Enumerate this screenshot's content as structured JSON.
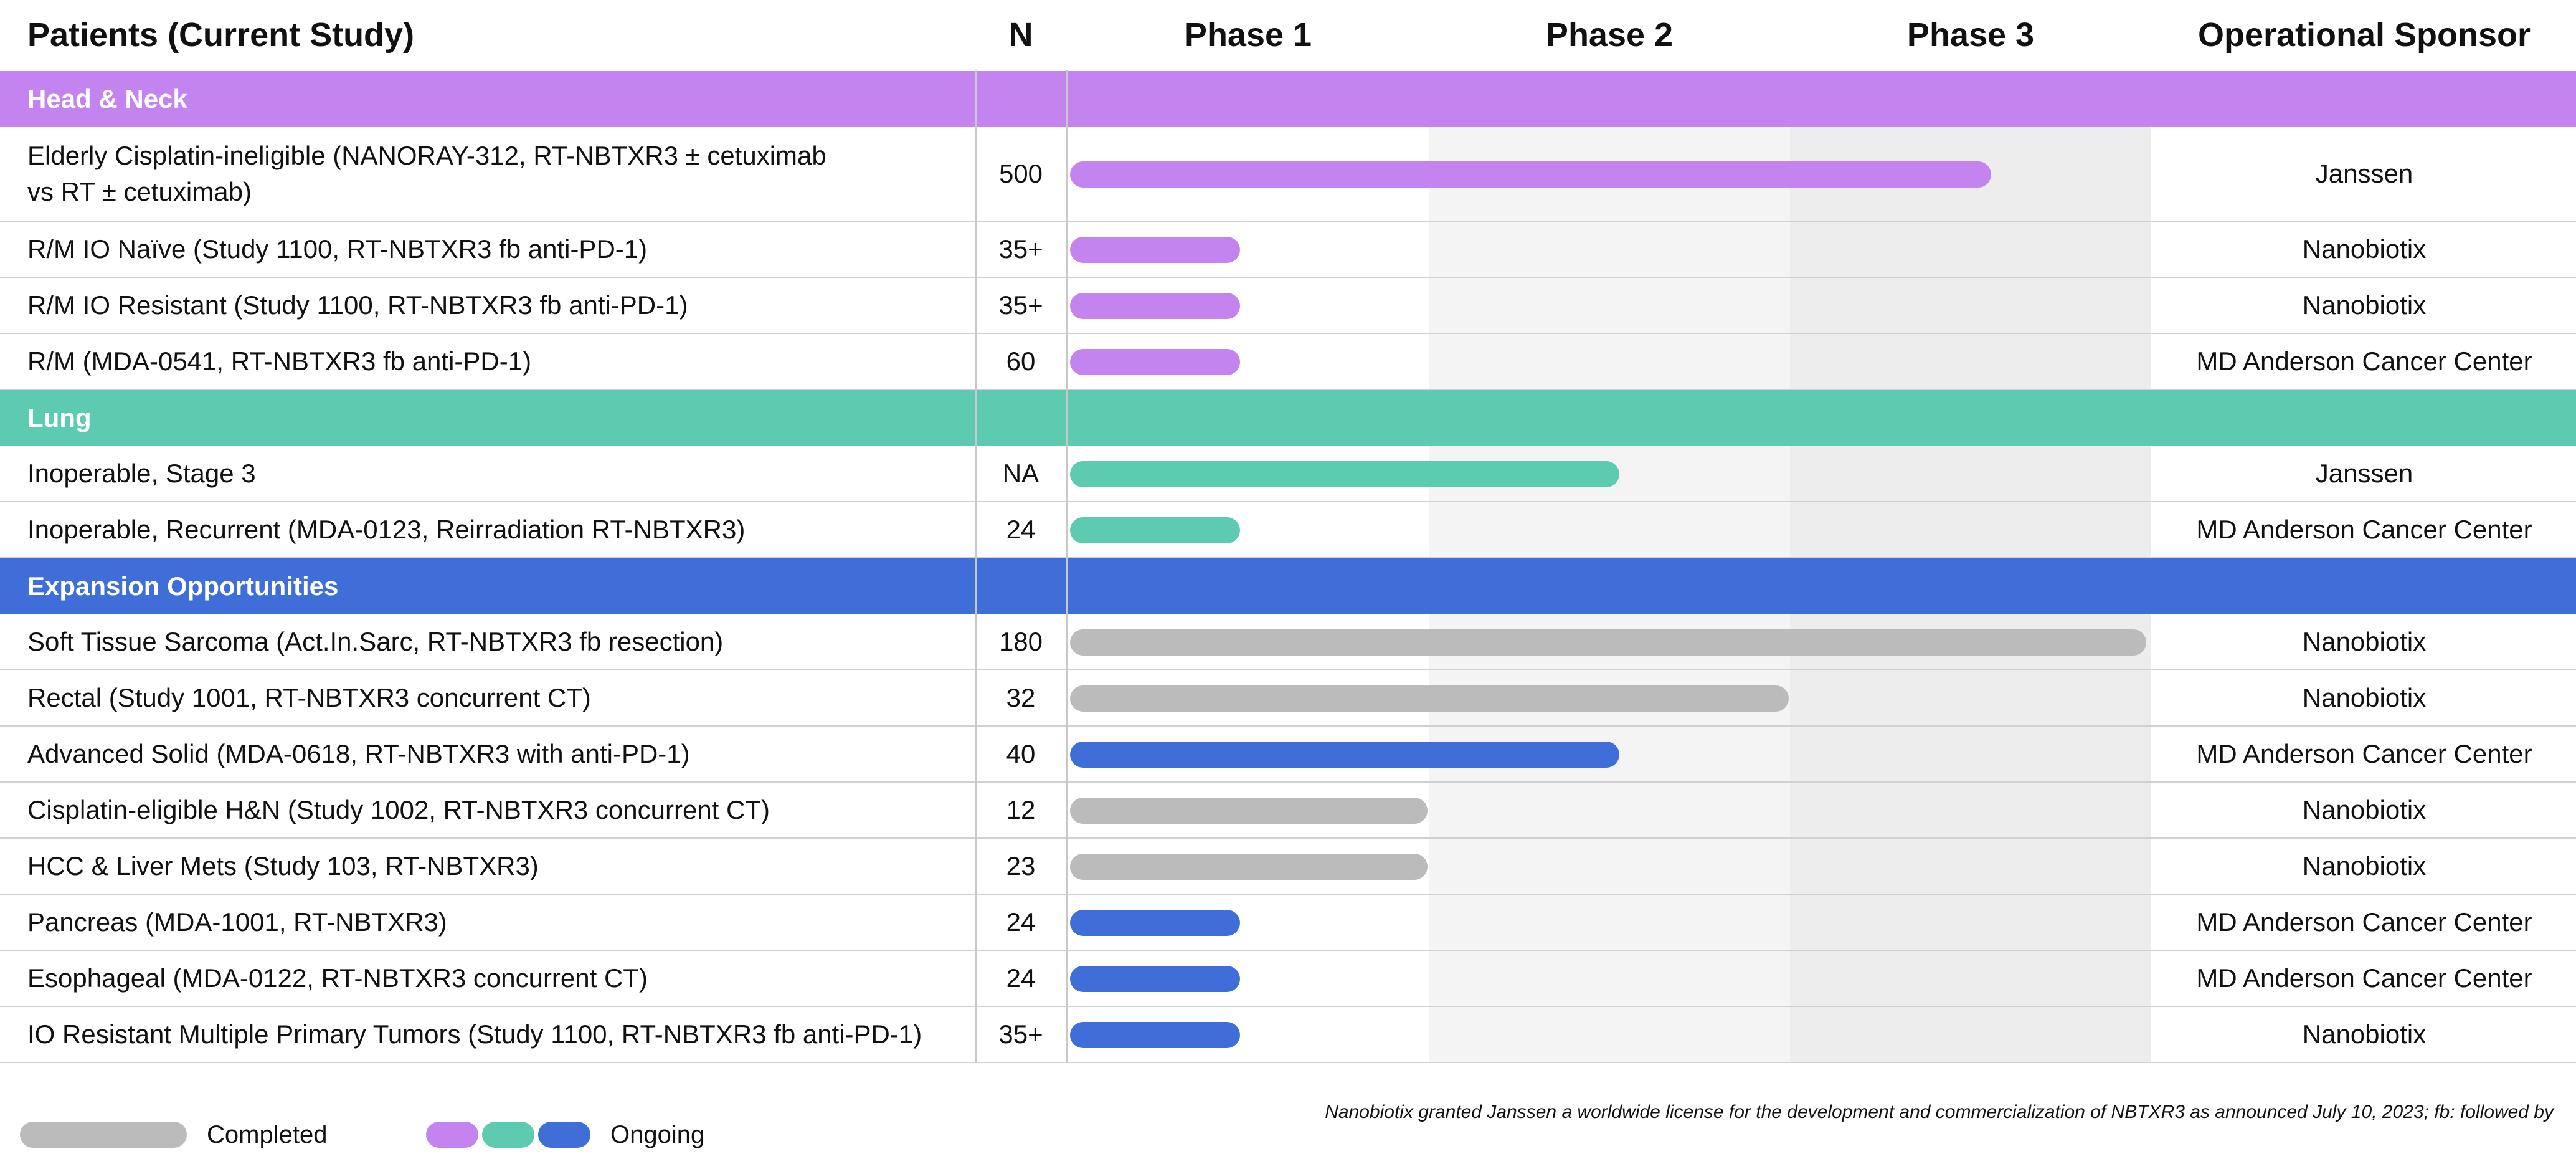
{
  "header": {
    "patients": "Patients (Current Study)",
    "n": "N",
    "phase1": "Phase 1",
    "phase2": "Phase 2",
    "phase3": "Phase 3",
    "sponsor": "Operational Sponsor"
  },
  "colors": {
    "head_neck": "#c484f0",
    "lung": "#5ccbb0",
    "expansion": "#3f6ed8",
    "completed": "#bbbbbb",
    "phase_shade_1": "#f0f0f0",
    "phase_shade_2": "#f7f7f7"
  },
  "sections": [
    {
      "label": "Head & Neck",
      "color_key": "head_neck",
      "rows": [
        {
          "name": "Elderly Cisplatin-ineligible (NANORAY-312, RT-NBTXR3 ± cetuximab\nvs RT ± cetuximab)",
          "n": "500",
          "sponsor": "Janssen",
          "progress_phases": 2.55,
          "status": "ongoing"
        },
        {
          "name": "R/M IO Naïve (Study 1100, RT-NBTXR3 fb anti-PD-1)",
          "n": "35+",
          "sponsor": "Nanobiotix",
          "progress_phases": 0.47,
          "status": "ongoing"
        },
        {
          "name": "R/M IO Resistant (Study 1100, RT-NBTXR3 fb anti-PD-1)",
          "n": "35+",
          "sponsor": "Nanobiotix",
          "progress_phases": 0.47,
          "status": "ongoing"
        },
        {
          "name": "R/M (MDA-0541, RT-NBTXR3 fb anti-PD-1)",
          "n": "60",
          "sponsor": "MD Anderson Cancer Center",
          "progress_phases": 0.47,
          "status": "ongoing"
        }
      ]
    },
    {
      "label": "Lung",
      "color_key": "lung",
      "rows": [
        {
          "name": "Inoperable, Stage 3",
          "n": "NA",
          "sponsor": "Janssen",
          "progress_phases": 1.52,
          "status": "ongoing"
        },
        {
          "name": "Inoperable, Recurrent (MDA-0123, Reirradiation RT-NBTXR3)",
          "n": "24",
          "sponsor": "MD Anderson Cancer Center",
          "progress_phases": 0.47,
          "status": "ongoing"
        }
      ]
    },
    {
      "label": "Expansion Opportunities",
      "color_key": "expansion",
      "rows": [
        {
          "name": "Soft Tissue Sarcoma (Act.In.Sarc, RT-NBTXR3 fb resection)",
          "n": "180",
          "sponsor": "Nanobiotix",
          "progress_phases": 2.98,
          "status": "completed"
        },
        {
          "name": "Rectal (Study 1001, RT-NBTXR3 concurrent CT)",
          "n": "32",
          "sponsor": "Nanobiotix",
          "progress_phases": 1.99,
          "status": "completed"
        },
        {
          "name": "Advanced Solid (MDA-0618, RT-NBTXR3 with anti-PD-1)",
          "n": "40",
          "sponsor": "MD Anderson Cancer Center",
          "progress_phases": 1.52,
          "status": "ongoing"
        },
        {
          "name": "Cisplatin-eligible H&N (Study 1002, RT-NBTXR3 concurrent CT)",
          "n": "12",
          "sponsor": "Nanobiotix",
          "progress_phases": 0.99,
          "status": "completed"
        },
        {
          "name": "HCC & Liver Mets (Study 103, RT-NBTXR3)",
          "n": "23",
          "sponsor": "Nanobiotix",
          "progress_phases": 0.99,
          "status": "completed"
        },
        {
          "name": "Pancreas (MDA-1001, RT-NBTXR3)",
          "n": "24",
          "sponsor": "MD Anderson Cancer Center",
          "progress_phases": 0.47,
          "status": "ongoing"
        },
        {
          "name": "Esophageal (MDA-0122, RT-NBTXR3 concurrent CT)",
          "n": "24",
          "sponsor": "MD Anderson Cancer Center",
          "progress_phases": 0.47,
          "status": "ongoing"
        },
        {
          "name": "IO Resistant Multiple Primary Tumors (Study 1100, RT-NBTXR3 fb anti-PD-1)",
          "n": "35+",
          "sponsor": "Nanobiotix",
          "progress_phases": 0.47,
          "status": "ongoing"
        }
      ]
    }
  ],
  "legend": {
    "completed": "Completed",
    "ongoing": "Ongoing"
  },
  "footnote": "Nanobiotix granted Janssen a worldwide license for the development and commercialization of NBTXR3 as announced July 10, 2023; fb: followed by"
}
